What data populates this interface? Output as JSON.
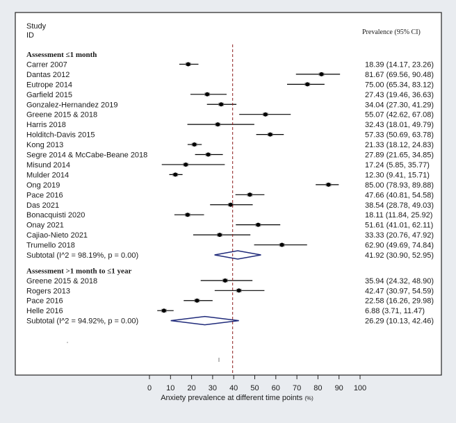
{
  "header": {
    "study_label": "Study",
    "id_label": "ID",
    "effect_label": "Prevalence (95% CI)"
  },
  "chart_data": {
    "type": "forest",
    "xlabel": "Anxiety prevalence at different time points",
    "xlabel_unit": "(%)",
    "xlim": [
      0,
      100
    ],
    "xticks": [
      "0",
      "10",
      "20",
      "30",
      "40",
      "50",
      "60",
      "70",
      "80",
      "90",
      "100"
    ],
    "reference_line": 39.5,
    "groups": [
      {
        "title": "Assessment ≤1 month",
        "studies": [
          {
            "name": "Carrer 2007",
            "est": 18.39,
            "lo": 14.17,
            "hi": 23.26,
            "text": "18.39 (14.17, 23.26)"
          },
          {
            "name": "Dantas 2012",
            "est": 81.67,
            "lo": 69.56,
            "hi": 90.48,
            "text": "81.67 (69.56, 90.48)"
          },
          {
            "name": "Eutrope 2014",
            "est": 75.0,
            "lo": 65.34,
            "hi": 83.12,
            "text": "75.00 (65.34, 83.12)"
          },
          {
            "name": "Garfield 2015",
            "est": 27.43,
            "lo": 19.46,
            "hi": 36.63,
            "text": "27.43 (19.46, 36.63)"
          },
          {
            "name": "Gonzalez-Hernandez 2019",
            "est": 34.04,
            "lo": 27.3,
            "hi": 41.29,
            "text": "34.04 (27.30, 41.29)"
          },
          {
            "name": "Greene 2015 & 2018",
            "est": 55.07,
            "lo": 42.62,
            "hi": 67.08,
            "text": "55.07 (42.62, 67.08)"
          },
          {
            "name": "Harris 2018",
            "est": 32.43,
            "lo": 18.01,
            "hi": 49.79,
            "text": "32.43 (18.01, 49.79)"
          },
          {
            "name": "Holditch-Davis 2015",
            "est": 57.33,
            "lo": 50.69,
            "hi": 63.78,
            "text": "57.33 (50.69, 63.78)"
          },
          {
            "name": "Kong 2013",
            "est": 21.33,
            "lo": 18.12,
            "hi": 24.83,
            "text": "21.33 (18.12, 24.83)"
          },
          {
            "name": "Segre 2014 & McCabe-Beane 2018",
            "est": 27.89,
            "lo": 21.65,
            "hi": 34.85,
            "text": "27.89 (21.65, 34.85)"
          },
          {
            "name": "Misund 2014",
            "est": 17.24,
            "lo": 5.85,
            "hi": 35.77,
            "text": "17.24 (5.85, 35.77)"
          },
          {
            "name": "Mulder 2014",
            "est": 12.3,
            "lo": 9.41,
            "hi": 15.71,
            "text": "12.30 (9.41, 15.71)"
          },
          {
            "name": "Ong 2019",
            "est": 85.0,
            "lo": 78.93,
            "hi": 89.88,
            "text": "85.00 (78.93, 89.88)"
          },
          {
            "name": "Pace 2016",
            "est": 47.66,
            "lo": 40.81,
            "hi": 54.58,
            "text": "47.66 (40.81, 54.58)"
          },
          {
            "name": "Das 2021",
            "est": 38.54,
            "lo": 28.78,
            "hi": 49.03,
            "text": "38.54 (28.78, 49.03)"
          },
          {
            "name": "Bonacquisti 2020",
            "est": 18.11,
            "lo": 11.84,
            "hi": 25.92,
            "text": "18.11 (11.84, 25.92)"
          },
          {
            "name": "Onay 2021",
            "est": 51.61,
            "lo": 41.01,
            "hi": 62.11,
            "text": "51.61 (41.01, 62.11)"
          },
          {
            "name": "Cajiao-Nieto 2021",
            "est": 33.33,
            "lo": 20.76,
            "hi": 47.92,
            "text": "33.33 (20.76, 47.92)"
          },
          {
            "name": "Trumello 2018",
            "est": 62.9,
            "lo": 49.69,
            "hi": 74.84,
            "text": "62.90 (49.69, 74.84)"
          }
        ],
        "subtotal": {
          "label": "Subtotal  (I^2 = 98.19%, p = 0.00)",
          "est": 41.92,
          "lo": 30.9,
          "hi": 52.95,
          "text": "41.92 (30.90, 52.95)"
        }
      },
      {
        "title": "Assessment >1 month to ≤1 year",
        "studies": [
          {
            "name": "Greene 2015 & 2018",
            "est": 35.94,
            "lo": 24.32,
            "hi": 48.9,
            "text": "35.94 (24.32, 48.90)"
          },
          {
            "name": "Rogers 2013",
            "est": 42.47,
            "lo": 30.97,
            "hi": 54.59,
            "text": "42.47 (30.97, 54.59)"
          },
          {
            "name": "Pace 2016",
            "est": 22.58,
            "lo": 16.26,
            "hi": 29.98,
            "text": "22.58 (16.26, 29.98)"
          },
          {
            "name": "Helle 2016",
            "est": 6.88,
            "lo": 3.71,
            "hi": 11.47,
            "text": "6.88 (3.71, 11.47)"
          }
        ],
        "subtotal": {
          "label": "Subtotal  (I^2 = 94.92%, p = 0.00)",
          "est": 26.29,
          "lo": 10.13,
          "hi": 42.46,
          "text": "26.29 (10.13, 42.46)"
        }
      }
    ],
    "colors": {
      "point": "#000000",
      "diamond": "#1f2a7a",
      "reference": "#8b1a1a",
      "frame": "#222222"
    }
  }
}
